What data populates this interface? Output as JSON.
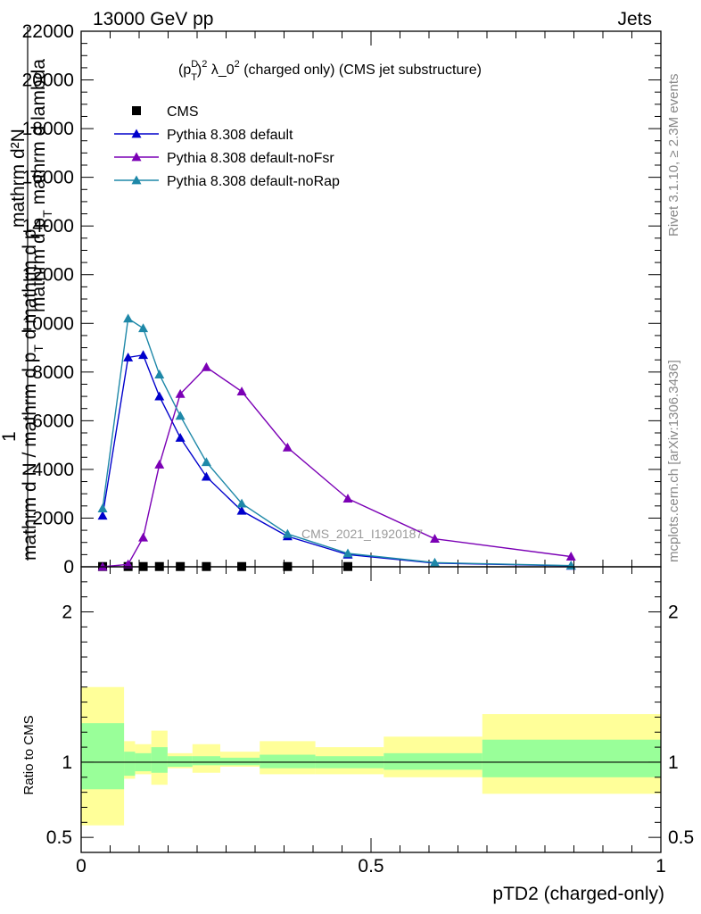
{
  "header": {
    "left": "13000 GeV pp",
    "right": "Jets"
  },
  "side_labels": {
    "rivet": "Rivet 3.1.10, ≥ 2.3M events",
    "mcplots": "mcplots.cern.ch [arXiv:1306.3436]"
  },
  "watermark": "CMS_2021_I1920187",
  "chart_data": [
    {
      "type": "line",
      "title_parts": {
        "pre": "(p",
        "sup": "D",
        "sub": "T",
        "post": ")",
        "sq1": "2",
        "mid": " λ_0",
        "sq2": "2",
        "end": " (charged only) (CMS jet substructure)"
      },
      "ylabel": {
        "top": "mathrm d²N",
        "one": "1",
        "mid": "mathrm d p",
        "mid_sub": "T",
        "mid_end": " mathrm d lambda",
        "bot1": "mathrm d N / mathrm d p",
        "bot_sub": "T",
        "bot_end": " d mathrm d p"
      },
      "xlim": [
        0,
        1
      ],
      "ylim": [
        0,
        22000
      ],
      "yticks": [
        {
          "v": 0,
          "label": "0"
        },
        {
          "v": 2000,
          "label": "2000"
        },
        {
          "v": 4000,
          "label": "4000"
        },
        {
          "v": 6000,
          "label": "6000"
        },
        {
          "v": 8000,
          "label": "8000"
        },
        {
          "v": 10000,
          "label": "10000"
        },
        {
          "v": 12000,
          "label": "12000"
        },
        {
          "v": 14000,
          "label": "14000"
        },
        {
          "v": 16000,
          "label": "16000"
        },
        {
          "v": 18000,
          "label": "18000"
        },
        {
          "v": 20000,
          "label": "20000"
        },
        {
          "v": 22000,
          "label": "22000"
        }
      ],
      "legend_position": "top-left",
      "series": [
        {
          "name": "CMS",
          "color": "#000000",
          "marker": "square",
          "x": [
            0.037,
            0.081,
            0.107,
            0.135,
            0.171,
            0.216,
            0.277,
            0.356,
            0.46
          ],
          "y": [
            10,
            10,
            10,
            10,
            10,
            10,
            10,
            10,
            10
          ]
        },
        {
          "name": "Pythia 8.308 default",
          "color": "#0000cc",
          "marker": "triangle",
          "x": [
            0.037,
            0.081,
            0.107,
            0.135,
            0.171,
            0.216,
            0.277,
            0.356,
            0.46,
            0.61,
            0.845
          ],
          "y": [
            2100,
            8600,
            8700,
            7000,
            5300,
            3700,
            2300,
            1250,
            500,
            150,
            40
          ]
        },
        {
          "name": "Pythia 8.308 default-noFsr",
          "color": "#7b00b5",
          "marker": "triangle",
          "x": [
            0.037,
            0.081,
            0.107,
            0.135,
            0.171,
            0.216,
            0.277,
            0.356,
            0.46,
            0.61,
            0.845
          ],
          "y": [
            0,
            100,
            1200,
            4200,
            7100,
            8200,
            7200,
            4900,
            2800,
            1150,
            420
          ]
        },
        {
          "name": "Pythia 8.308 default-noRap",
          "color": "#1e88a8",
          "marker": "triangle",
          "x": [
            0.037,
            0.081,
            0.107,
            0.135,
            0.171,
            0.216,
            0.277,
            0.356,
            0.46,
            0.61,
            0.845
          ],
          "y": [
            2400,
            10200,
            9800,
            7900,
            6200,
            4300,
            2600,
            1350,
            550,
            170,
            50
          ]
        }
      ]
    },
    {
      "type": "area",
      "ylabel": "Ratio to CMS",
      "xlabel": "pTD2 (charged-only)",
      "xlim": [
        0,
        1
      ],
      "ylim": [
        0.4,
        2.3
      ],
      "xticks": [
        {
          "v": 0,
          "label": "0"
        },
        {
          "v": 0.5,
          "label": "0.5"
        },
        {
          "v": 1,
          "label": "1"
        }
      ],
      "yticks": [
        {
          "v": 0.5,
          "label": "0.5"
        },
        {
          "v": 1,
          "label": "1"
        },
        {
          "v": 2,
          "label": "2"
        }
      ],
      "bin_edges": [
        0.0,
        0.074,
        0.093,
        0.121,
        0.149,
        0.192,
        0.24,
        0.308,
        0.404,
        0.522,
        0.692,
        1.0
      ],
      "band_inner_low": [
        0.82,
        0.91,
        0.94,
        0.93,
        0.97,
        0.98,
        0.98,
        0.96,
        0.96,
        0.95,
        0.9
      ],
      "band_inner_high": [
        1.26,
        1.07,
        1.06,
        1.1,
        1.04,
        1.04,
        1.03,
        1.05,
        1.04,
        1.06,
        1.15
      ],
      "band_outer_low": [
        0.58,
        0.89,
        0.92,
        0.85,
        0.96,
        0.93,
        0.97,
        0.92,
        0.92,
        0.9,
        0.79
      ],
      "band_outer_high": [
        1.5,
        1.14,
        1.12,
        1.21,
        1.06,
        1.12,
        1.07,
        1.14,
        1.1,
        1.17,
        1.32
      ],
      "inner_color": "#99ff99",
      "outer_color": "#ffff99"
    }
  ]
}
